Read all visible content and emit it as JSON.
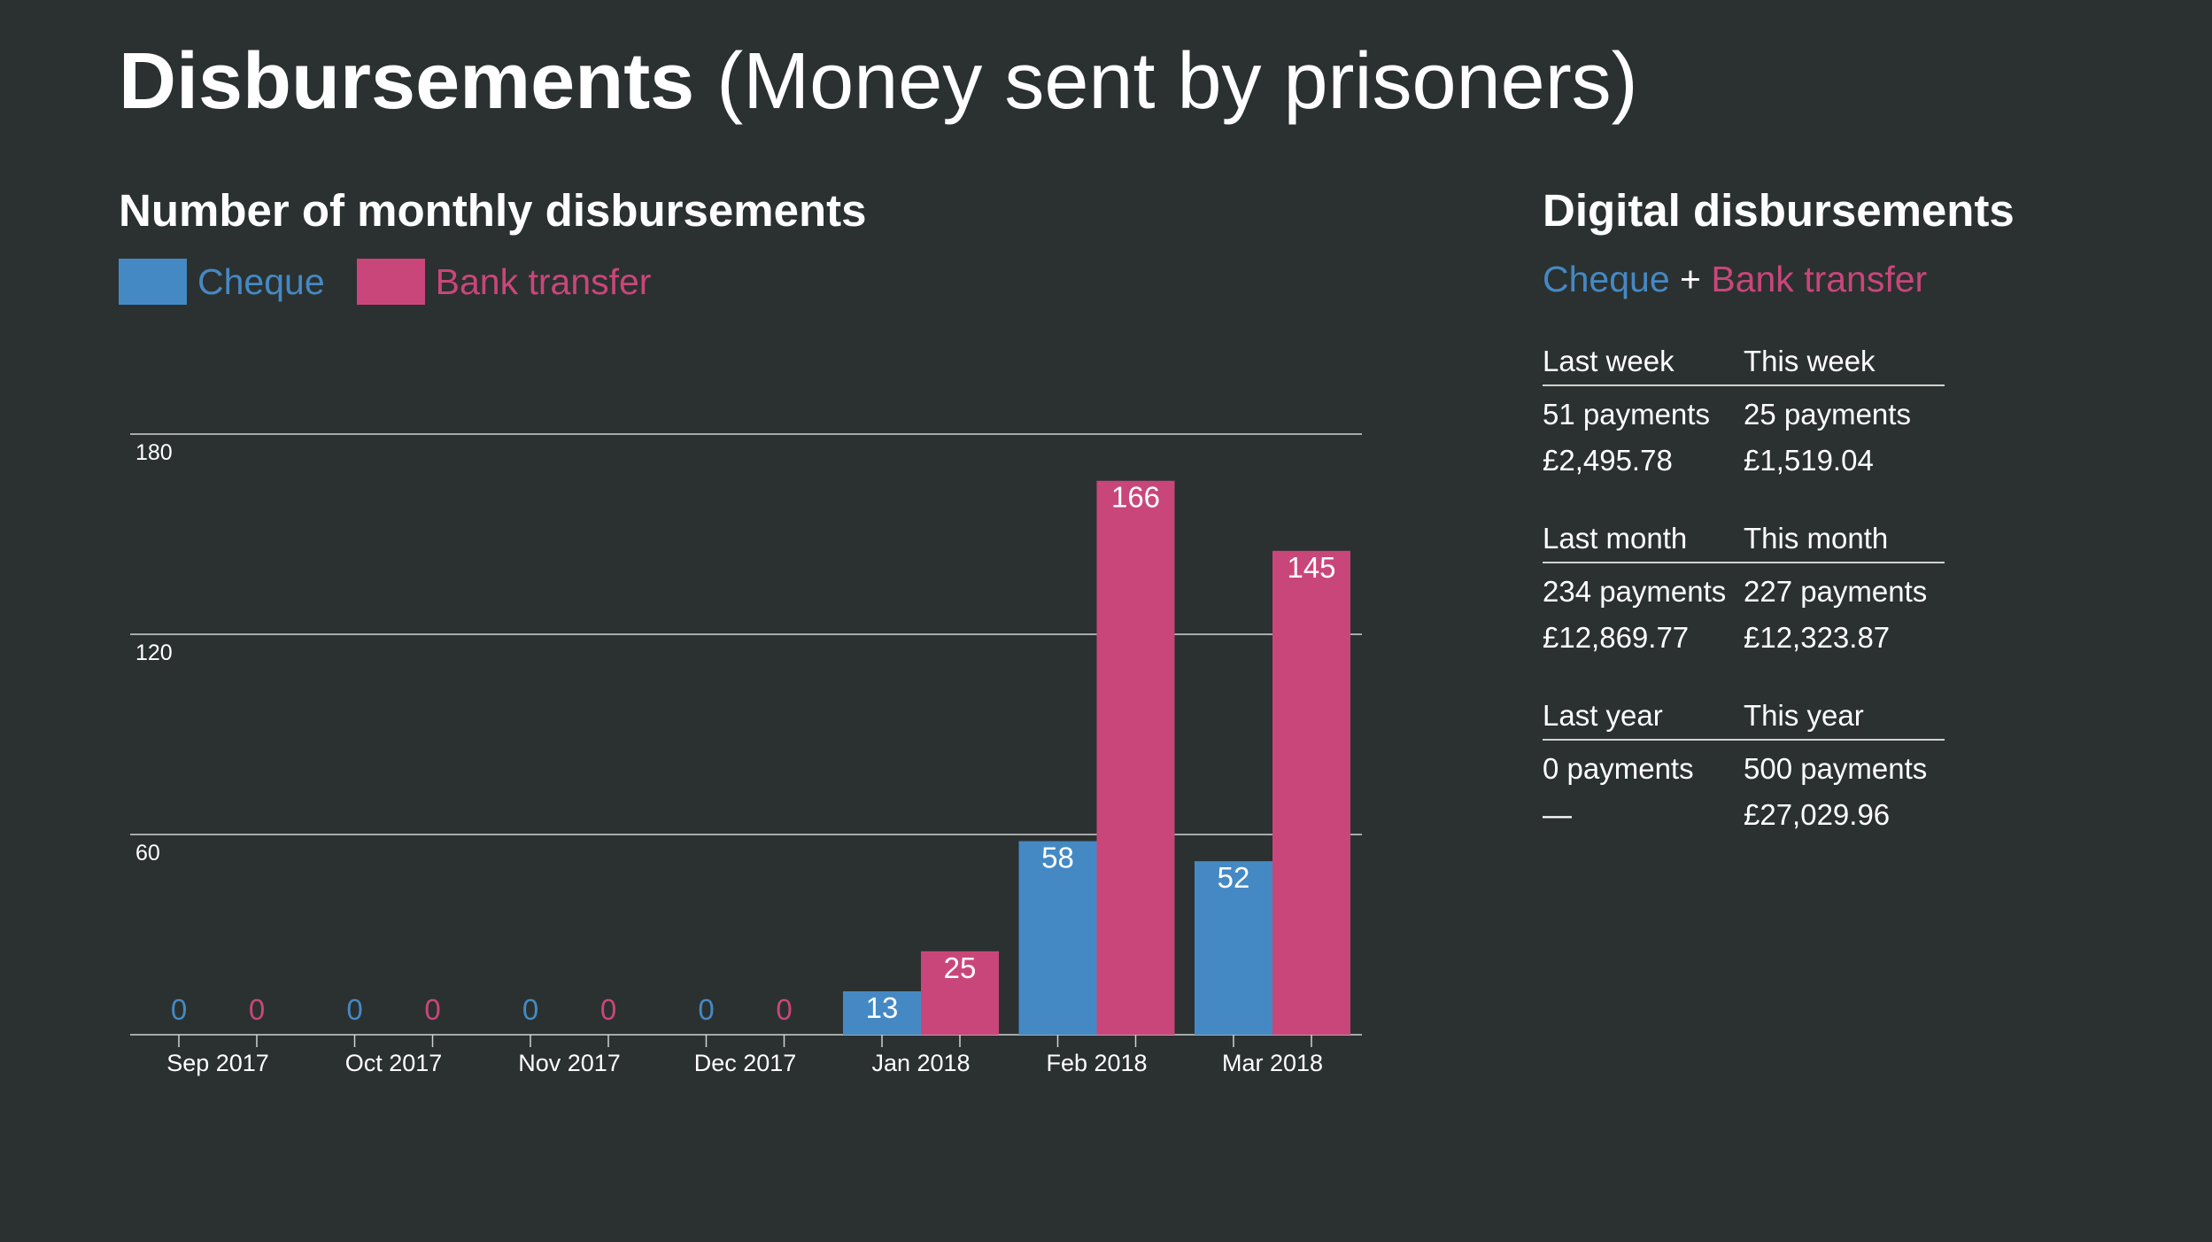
{
  "page": {
    "title_main": "Disbursements",
    "title_rest": " (Money sent by prisoners)"
  },
  "colors": {
    "background": "#2b3130",
    "cheque": "#4589c4",
    "bank_transfer": "#c9467b",
    "gridline": "#cfd2d1"
  },
  "chart_heading": "Number of monthly disbursements",
  "chart_data": {
    "type": "bar",
    "categories": [
      "Sep 2017",
      "Oct 2017",
      "Nov 2017",
      "Dec 2017",
      "Jan 2018",
      "Feb 2018",
      "Mar 2018"
    ],
    "series": [
      {
        "name": "Cheque",
        "color": "#4589c4",
        "values": [
          0,
          0,
          0,
          0,
          13,
          58,
          52
        ]
      },
      {
        "name": "Bank transfer",
        "color": "#c9467b",
        "values": [
          0,
          0,
          0,
          0,
          25,
          166,
          145
        ]
      }
    ],
    "y_ticks": [
      60,
      120,
      180
    ],
    "ylim": [
      0,
      180
    ],
    "grid": true,
    "legend": "top-left",
    "data_labels": true
  },
  "side": {
    "heading": "Digital disbursements",
    "sub_cheque": "Cheque",
    "sub_plus": " + ",
    "sub_bank": "Bank transfer",
    "periods": [
      {
        "prev_label": "Last week",
        "curr_label": "This week",
        "prev_count": "51 payments",
        "curr_count": "25 payments",
        "prev_amount": "£2,495.78",
        "curr_amount": "£1,519.04"
      },
      {
        "prev_label": "Last month",
        "curr_label": "This month",
        "prev_count": "234 payments",
        "curr_count": "227 payments",
        "prev_amount": "£12,869.77",
        "curr_amount": "£12,323.87"
      },
      {
        "prev_label": "Last year",
        "curr_label": "This year",
        "prev_count": "0 payments",
        "curr_count": "500 payments",
        "prev_amount": "—",
        "curr_amount": "£27,029.96"
      }
    ]
  }
}
